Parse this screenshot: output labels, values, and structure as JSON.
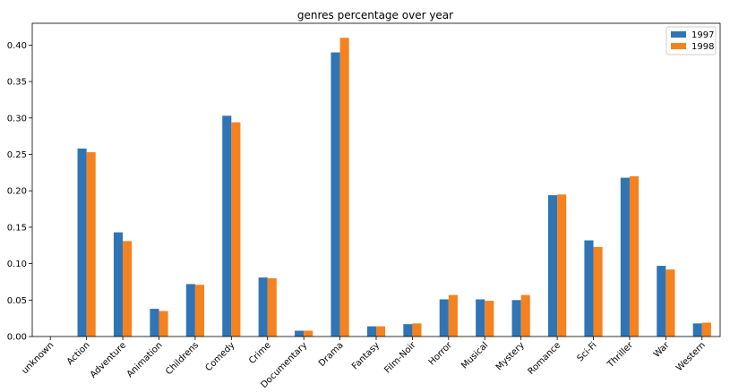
{
  "chart_data": {
    "type": "bar",
    "title": "genres percentage over year",
    "xlabel": "",
    "ylabel": "",
    "ylim": [
      0,
      0.43
    ],
    "yticks": [
      "0.00",
      "0.05",
      "0.10",
      "0.15",
      "0.20",
      "0.25",
      "0.30",
      "0.35",
      "0.40"
    ],
    "categories": [
      "unknown",
      "Action",
      "Adventure",
      "Animation",
      "Childrens",
      "Comedy",
      "Crime",
      "Documentary",
      "Drama",
      "Fantasy",
      "Film-Noir",
      "Horror",
      "Musical",
      "Mystery",
      "Romance",
      "Sci-Fi",
      "Thriller",
      "War",
      "Western"
    ],
    "series": [
      {
        "name": "1997",
        "color": "#2f75b5",
        "values": [
          0.0,
          0.258,
          0.143,
          0.038,
          0.072,
          0.303,
          0.081,
          0.008,
          0.39,
          0.014,
          0.017,
          0.051,
          0.051,
          0.05,
          0.194,
          0.132,
          0.218,
          0.097,
          0.018
        ]
      },
      {
        "name": "1998",
        "color": "#f5821f",
        "values": [
          0.0,
          0.253,
          0.131,
          0.035,
          0.071,
          0.294,
          0.08,
          0.008,
          0.41,
          0.014,
          0.018,
          0.057,
          0.049,
          0.057,
          0.195,
          0.123,
          0.22,
          0.092,
          0.019
        ]
      }
    ],
    "legend_position": "top-right",
    "grid": false
  }
}
